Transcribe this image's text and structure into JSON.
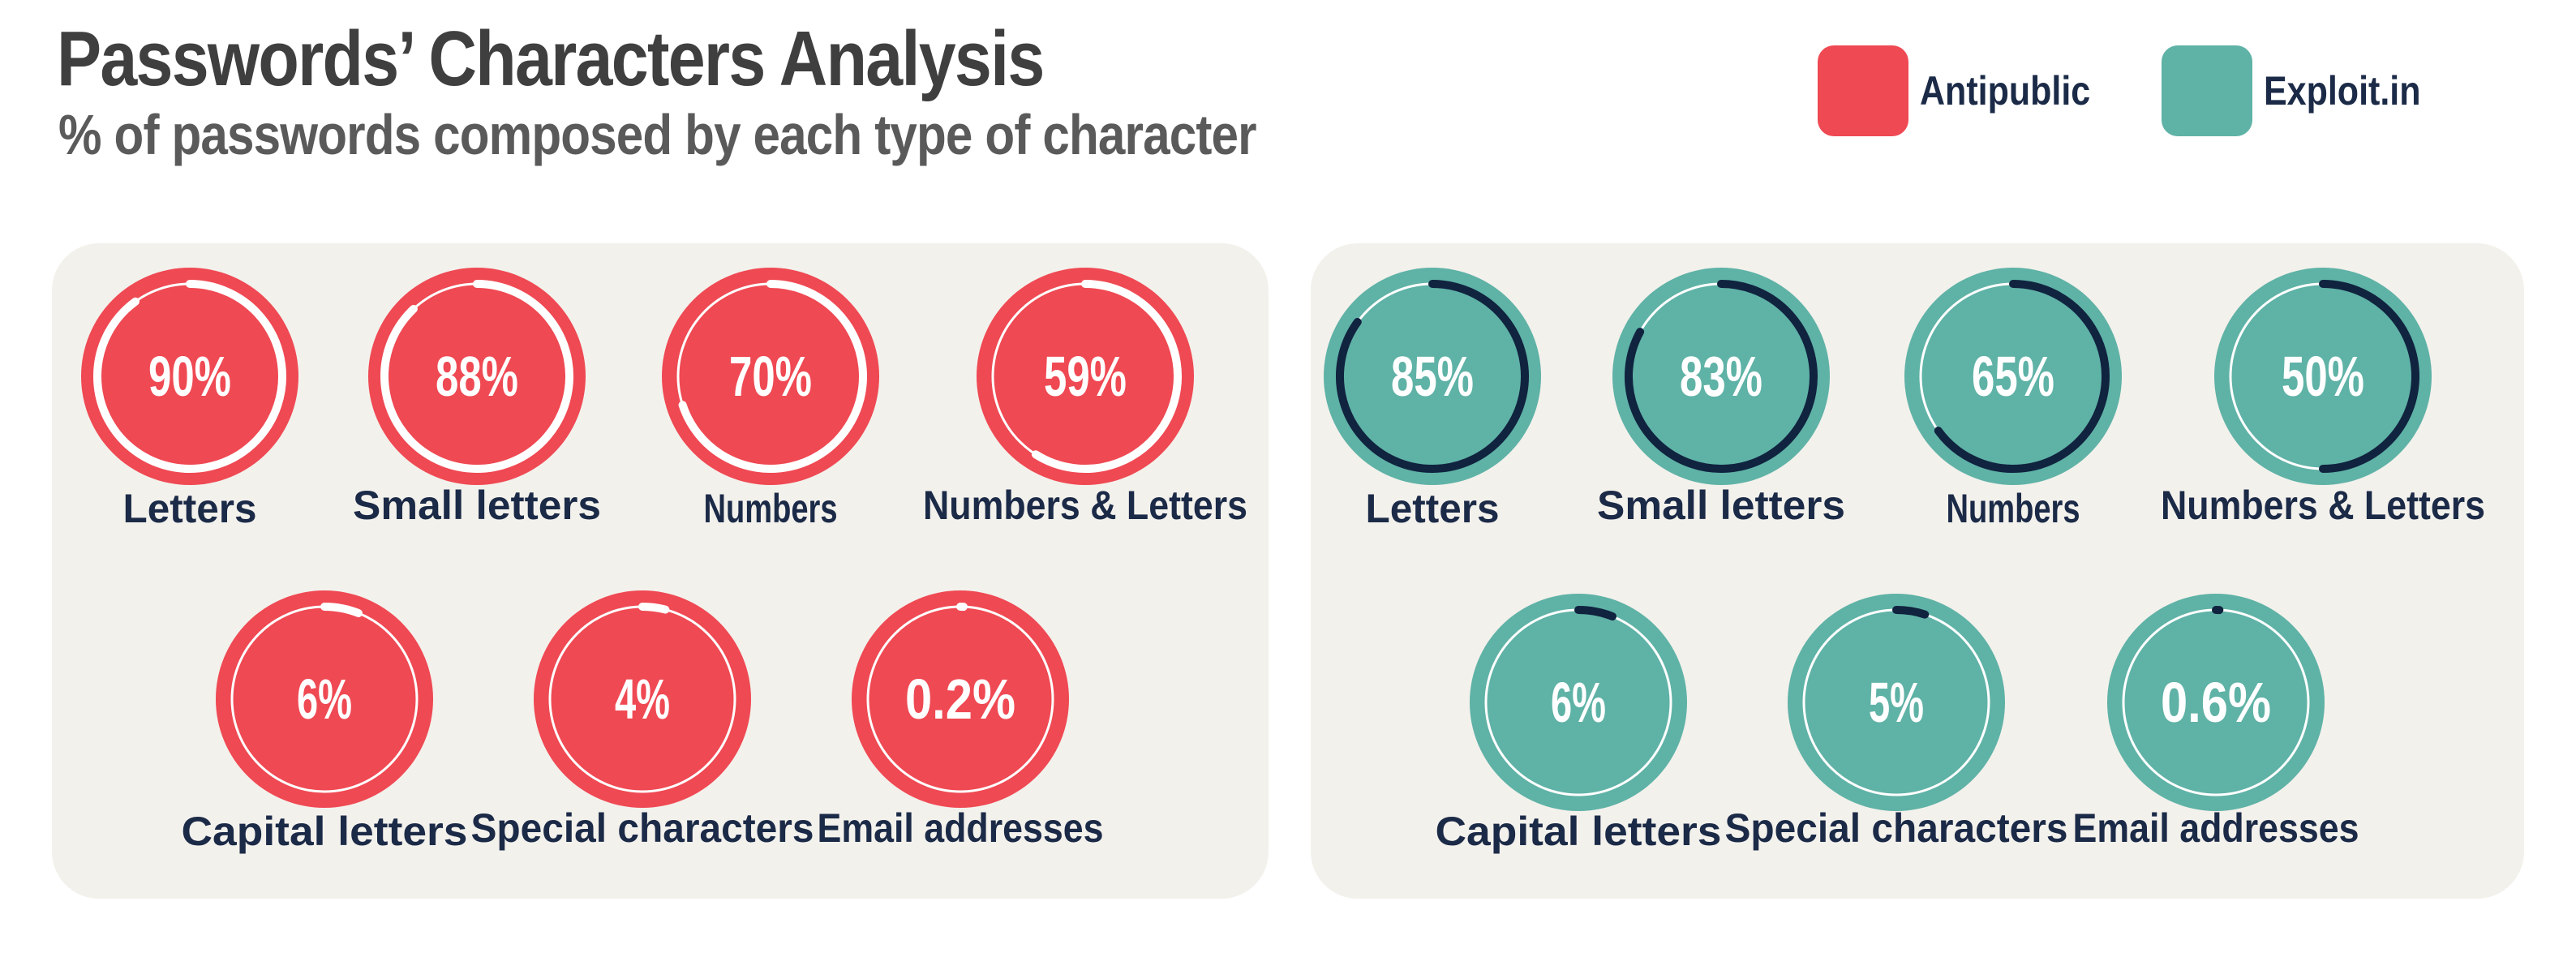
{
  "title": "Passwords’ Characters Analysis",
  "subtitle": "% of passwords composed by each type of character",
  "legend": [
    {
      "label": "Antipublic",
      "color": "#ef4953"
    },
    {
      "label": "Exploit.in",
      "color": "#5fb2a6"
    }
  ],
  "chart_data": [
    {
      "type": "radial-progress",
      "series": "Antipublic",
      "color": "#ef4953",
      "progress_color": "#ffffff",
      "items": [
        {
          "label": "Letters",
          "value": 90,
          "display": "90%"
        },
        {
          "label": "Small letters",
          "value": 88,
          "display": "88%"
        },
        {
          "label": "Numbers",
          "value": 70,
          "display": "70%"
        },
        {
          "label": "Numbers & Letters",
          "value": 59,
          "display": "59%"
        },
        {
          "label": "Capital letters",
          "value": 6,
          "display": "6%"
        },
        {
          "label": "Special characters",
          "value": 4,
          "display": "4%"
        },
        {
          "label": "Email addresses",
          "value": 0.2,
          "display": "0.2%"
        }
      ]
    },
    {
      "type": "radial-progress",
      "series": "Exploit.in",
      "color": "#5fb2a6",
      "progress_color": "#10233f",
      "items": [
        {
          "label": "Letters",
          "value": 85,
          "display": "85%"
        },
        {
          "label": "Small letters",
          "value": 83,
          "display": "83%"
        },
        {
          "label": "Numbers",
          "value": 65,
          "display": "65%"
        },
        {
          "label": "Numbers & Letters",
          "value": 50,
          "display": "50%"
        },
        {
          "label": "Capital letters",
          "value": 6,
          "display": "6%"
        },
        {
          "label": "Special characters",
          "value": 5,
          "display": "5%"
        },
        {
          "label": "Email addresses",
          "value": 0.6,
          "display": "0.6%"
        }
      ]
    }
  ]
}
